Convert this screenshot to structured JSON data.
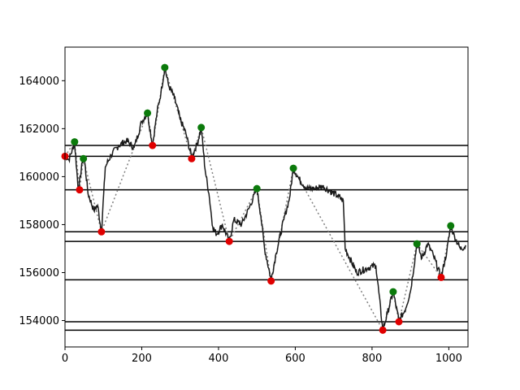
{
  "chart_data": {
    "type": "line",
    "title": "",
    "xlabel": "",
    "ylabel": "",
    "xlim": [
      0,
      1050
    ],
    "ylim": [
      152900,
      165400
    ],
    "grid": false,
    "legend": "none",
    "x_ticks": [
      0,
      200,
      400,
      600,
      800,
      1000
    ],
    "x_tick_labels": [
      "0",
      "200",
      "400",
      "600",
      "800",
      "1000"
    ],
    "y_ticks": [
      154000,
      156000,
      158000,
      160000,
      162000,
      164000
    ],
    "y_tick_labels": [
      "154000",
      "156000",
      "158000",
      "160000",
      "162000",
      "164000"
    ],
    "colors": {
      "price": "#1a1a1a",
      "peak": "#0b7a0b",
      "trough": "#e00000",
      "zigzag": "#808080",
      "level": "#000000"
    },
    "horizontal_levels": [
      161300,
      160850,
      159450,
      157700,
      157300,
      155700,
      153950,
      153600
    ],
    "price_series": {
      "x": [
        0,
        10,
        25,
        35,
        45,
        50,
        60,
        75,
        85,
        95,
        105,
        120,
        140,
        160,
        180,
        200,
        215,
        228,
        240,
        250,
        260,
        270,
        285,
        300,
        315,
        330,
        345,
        355,
        365,
        375,
        385,
        395,
        410,
        428,
        440,
        460,
        480,
        500,
        510,
        520,
        537,
        550,
        570,
        585,
        595,
        610,
        630,
        650,
        670,
        690,
        710,
        725,
        730,
        760,
        790,
        810,
        828,
        840,
        855,
        870,
        885,
        900,
        917,
        930,
        945,
        960,
        980,
        995,
        1005,
        1015,
        1030,
        1045
      ],
      "y": [
        160900,
        160700,
        161400,
        159400,
        160600,
        160800,
        159300,
        158600,
        158800,
        157700,
        160400,
        160900,
        161300,
        161500,
        161200,
        162300,
        162650,
        161300,
        162700,
        163500,
        164550,
        163800,
        163300,
        162400,
        161800,
        160800,
        161400,
        162050,
        160300,
        159300,
        157900,
        157600,
        158000,
        157300,
        158200,
        158000,
        158700,
        159500,
        158400,
        157000,
        155700,
        156800,
        158200,
        159100,
        160350,
        159900,
        159500,
        159500,
        159600,
        159400,
        159200,
        159000,
        157000,
        156000,
        156200,
        156300,
        153600,
        154300,
        155200,
        154000,
        154400,
        155200,
        157200,
        156600,
        157200,
        156700,
        155800,
        156900,
        157950,
        157500,
        157000,
        157100
      ]
    },
    "peaks": {
      "x": [
        25,
        48,
        215,
        260,
        355,
        500,
        595,
        855,
        917,
        1005
      ],
      "y": [
        161450,
        160750,
        162650,
        164550,
        162050,
        159500,
        160350,
        155200,
        157200,
        157950
      ]
    },
    "troughs": {
      "x": [
        0,
        38,
        95,
        228,
        330,
        428,
        537,
        828,
        870,
        980
      ],
      "y": [
        160850,
        159450,
        157700,
        161300,
        160750,
        157300,
        155650,
        153600,
        153950,
        155800
      ]
    }
  }
}
